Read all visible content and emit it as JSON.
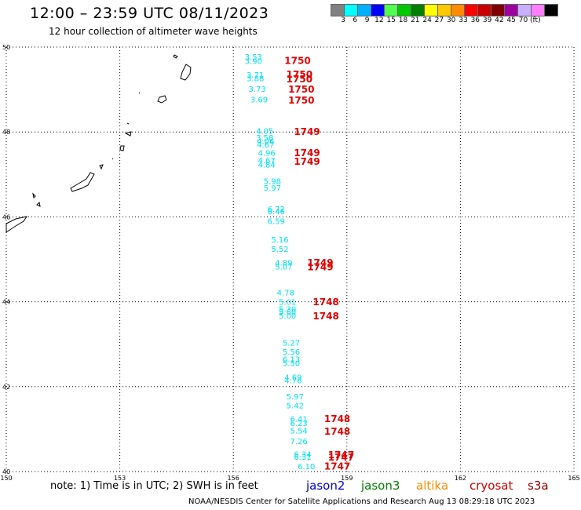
{
  "header": {
    "title": "12:00 – 23:59 UTC 08/11/2023",
    "subtitle": "12 hour collection of altimeter wave heights"
  },
  "colorbar": {
    "colors": [
      "#808080",
      "#00ffff",
      "#00b0ff",
      "#0000ff",
      "#50ff50",
      "#00c800",
      "#008000",
      "#ffff00",
      "#ffc800",
      "#ff8c00",
      "#ff0000",
      "#c80000",
      "#800000",
      "#a000a0",
      "#c8b0ff",
      "#ff80ff",
      "#000000"
    ],
    "labels": [
      "3",
      "6",
      "9",
      "12",
      "15",
      "18",
      "21",
      "24",
      "27",
      "30",
      "33",
      "36",
      "39",
      "42",
      "45",
      "70",
      "(ft)"
    ]
  },
  "map": {
    "lon_range": [
      150,
      165
    ],
    "lat_range": [
      40,
      50
    ],
    "x_ticks": [
      "150",
      "153",
      "156",
      "159",
      "162",
      "165"
    ],
    "y_ticks": [
      "50",
      "48",
      "46",
      "44",
      "42",
      "40"
    ],
    "grid": "dotted",
    "swh_color": "#00e0f0",
    "time_color": "#e00000",
    "observations": [
      {
        "lon": 156.3,
        "lat": 49.7,
        "swh": "3.53"
      },
      {
        "lon": 156.3,
        "lat": 49.6,
        "swh": "3.90"
      },
      {
        "lon": 156.35,
        "lat": 49.28,
        "swh": "3.71"
      },
      {
        "lon": 156.35,
        "lat": 49.2,
        "swh": "3.88"
      },
      {
        "lon": 156.4,
        "lat": 48.95,
        "swh": "3.73"
      },
      {
        "lon": 156.45,
        "lat": 48.7,
        "swh": "3.69"
      },
      {
        "lon": 156.6,
        "lat": 47.96,
        "swh": "4.05"
      },
      {
        "lon": 156.6,
        "lat": 47.8,
        "swh": "3.58"
      },
      {
        "lon": 156.62,
        "lat": 47.72,
        "swh": "4.06"
      },
      {
        "lon": 156.62,
        "lat": 47.63,
        "swh": "4.67"
      },
      {
        "lon": 156.65,
        "lat": 47.44,
        "swh": "4.96"
      },
      {
        "lon": 156.65,
        "lat": 47.26,
        "swh": "4.67"
      },
      {
        "lon": 156.65,
        "lat": 47.16,
        "swh": "4.84"
      },
      {
        "lon": 156.8,
        "lat": 46.77,
        "swh": "5.98"
      },
      {
        "lon": 156.8,
        "lat": 46.62,
        "swh": "5.97"
      },
      {
        "lon": 156.9,
        "lat": 46.12,
        "swh": "6.72"
      },
      {
        "lon": 156.9,
        "lat": 46.06,
        "swh": "6.46"
      },
      {
        "lon": 156.9,
        "lat": 45.83,
        "swh": "6.59"
      },
      {
        "lon": 157.0,
        "lat": 45.4,
        "swh": "5.16"
      },
      {
        "lon": 157.0,
        "lat": 45.18,
        "swh": "5.52"
      },
      {
        "lon": 157.1,
        "lat": 44.85,
        "swh": "4.89"
      },
      {
        "lon": 157.1,
        "lat": 44.76,
        "swh": "5.07"
      },
      {
        "lon": 157.15,
        "lat": 44.15,
        "swh": "4.78"
      },
      {
        "lon": 157.2,
        "lat": 43.93,
        "swh": "5.01"
      },
      {
        "lon": 157.2,
        "lat": 43.76,
        "swh": "5.30"
      },
      {
        "lon": 157.2,
        "lat": 43.7,
        "swh": "5.60"
      },
      {
        "lon": 157.2,
        "lat": 43.6,
        "swh": "5.00"
      },
      {
        "lon": 157.3,
        "lat": 42.97,
        "swh": "5.27"
      },
      {
        "lon": 157.3,
        "lat": 42.75,
        "swh": "5.56"
      },
      {
        "lon": 157.3,
        "lat": 42.58,
        "swh": "6.13"
      },
      {
        "lon": 157.3,
        "lat": 42.49,
        "swh": "5.50"
      },
      {
        "lon": 157.35,
        "lat": 42.15,
        "swh": "4.69"
      },
      {
        "lon": 157.35,
        "lat": 42.08,
        "swh": "4.76"
      },
      {
        "lon": 157.4,
        "lat": 41.7,
        "swh": "5.97"
      },
      {
        "lon": 157.4,
        "lat": 41.49,
        "swh": "5.42"
      },
      {
        "lon": 157.5,
        "lat": 41.17,
        "swh": "6.41"
      },
      {
        "lon": 157.5,
        "lat": 41.07,
        "swh": "6.23"
      },
      {
        "lon": 157.5,
        "lat": 40.9,
        "swh": "5.54"
      },
      {
        "lon": 157.5,
        "lat": 40.65,
        "swh": "7.26"
      },
      {
        "lon": 157.6,
        "lat": 40.34,
        "swh": "6.34"
      },
      {
        "lon": 157.6,
        "lat": 40.28,
        "swh": "6.31"
      },
      {
        "lon": 157.7,
        "lat": 40.06,
        "swh": "6.10"
      }
    ],
    "times": [
      {
        "lon": 157.35,
        "lat": 49.6,
        "label": "1750"
      },
      {
        "lon": 157.4,
        "lat": 49.28,
        "label": "1750"
      },
      {
        "lon": 157.4,
        "lat": 49.17,
        "label": "1750"
      },
      {
        "lon": 157.45,
        "lat": 48.93,
        "label": "1750"
      },
      {
        "lon": 157.45,
        "lat": 48.67,
        "label": "1750"
      },
      {
        "lon": 157.6,
        "lat": 47.93,
        "label": "1749"
      },
      {
        "lon": 157.6,
        "lat": 47.43,
        "label": "1749"
      },
      {
        "lon": 157.6,
        "lat": 47.23,
        "label": "1749"
      },
      {
        "lon": 157.95,
        "lat": 44.84,
        "label": "1749"
      },
      {
        "lon": 157.95,
        "lat": 44.74,
        "label": "1749"
      },
      {
        "lon": 158.1,
        "lat": 43.92,
        "label": "1748"
      },
      {
        "lon": 158.1,
        "lat": 43.59,
        "label": "1748"
      },
      {
        "lon": 158.4,
        "lat": 41.16,
        "label": "1748"
      },
      {
        "lon": 158.4,
        "lat": 40.87,
        "label": "1748"
      },
      {
        "lon": 158.5,
        "lat": 40.31,
        "label": "1747"
      },
      {
        "lon": 158.5,
        "lat": 40.26,
        "label": "1747"
      },
      {
        "lon": 158.4,
        "lat": 40.05,
        "label": "1747"
      }
    ]
  },
  "note": "note: 1) Time is in UTC; 2) SWH is in feet",
  "satellites": [
    {
      "name": "jason2",
      "color": "#0000e0"
    },
    {
      "name": "jason3",
      "color": "#008000"
    },
    {
      "name": "altika",
      "color": "#ff8c00"
    },
    {
      "name": "cryosat",
      "color": "#d00000"
    },
    {
      "name": "s3a",
      "color": "#900000"
    }
  ],
  "footer": "NOAA/NESDIS Center for Satellite Applications and Research   Aug 13 08:29:18 UTC 2023"
}
